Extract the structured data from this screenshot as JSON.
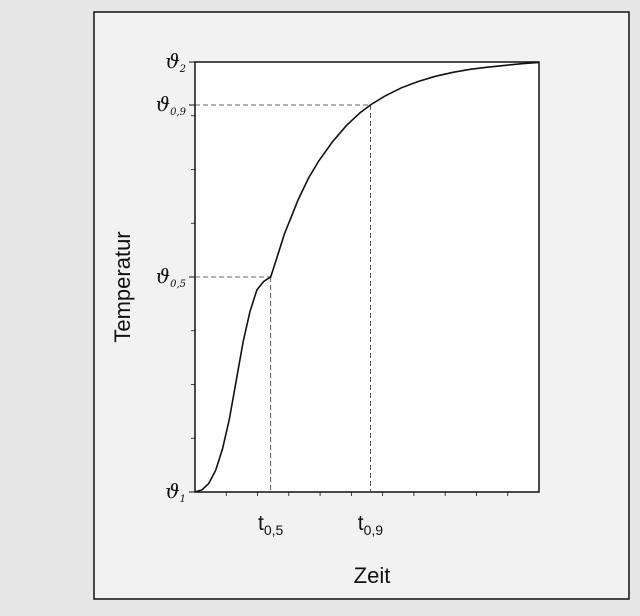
{
  "chart_data": {
    "type": "line",
    "title": "",
    "xlabel": "Zeit",
    "ylabel": "Temperatur",
    "xlim": [
      0,
      1
    ],
    "ylim": [
      0,
      1
    ],
    "grid": false,
    "x_ticks": [
      {
        "base": "t",
        "sub": "0,5",
        "value": 0.22
      },
      {
        "base": "t",
        "sub": "0,9",
        "value": 0.51
      }
    ],
    "y_ticks": [
      {
        "base": "ϑ",
        "sub": "1",
        "value": 0.0
      },
      {
        "base": "ϑ",
        "sub": "0,5",
        "value": 0.5
      },
      {
        "base": "ϑ",
        "sub": "0,9",
        "value": 0.9
      },
      {
        "base": "ϑ",
        "sub": "2",
        "value": 1.0
      }
    ],
    "reference_lines": [
      {
        "x": 0.22,
        "y": 0.5,
        "style": "dashed"
      },
      {
        "x": 0.51,
        "y": 0.9,
        "style": "dashed"
      }
    ],
    "series": [
      {
        "color": "#000000",
        "x": [
          0,
          0.02,
          0.04,
          0.06,
          0.08,
          0.1,
          0.12,
          0.14,
          0.16,
          0.18,
          0.2,
          0.22,
          0.24,
          0.26,
          0.28,
          0.3,
          0.33,
          0.36,
          0.4,
          0.44,
          0.48,
          0.51,
          0.55,
          0.6,
          0.65,
          0.7,
          0.75,
          0.8,
          0.85,
          0.9,
          0.95,
          1.0
        ],
        "y": [
          0,
          0.005,
          0.02,
          0.05,
          0.1,
          0.17,
          0.26,
          0.35,
          0.42,
          0.47,
          0.49,
          0.5,
          0.55,
          0.6,
          0.64,
          0.68,
          0.73,
          0.77,
          0.815,
          0.852,
          0.882,
          0.9,
          0.92,
          0.94,
          0.955,
          0.967,
          0.976,
          0.983,
          0.988,
          0.992,
          0.996,
          0.999
        ]
      }
    ]
  }
}
